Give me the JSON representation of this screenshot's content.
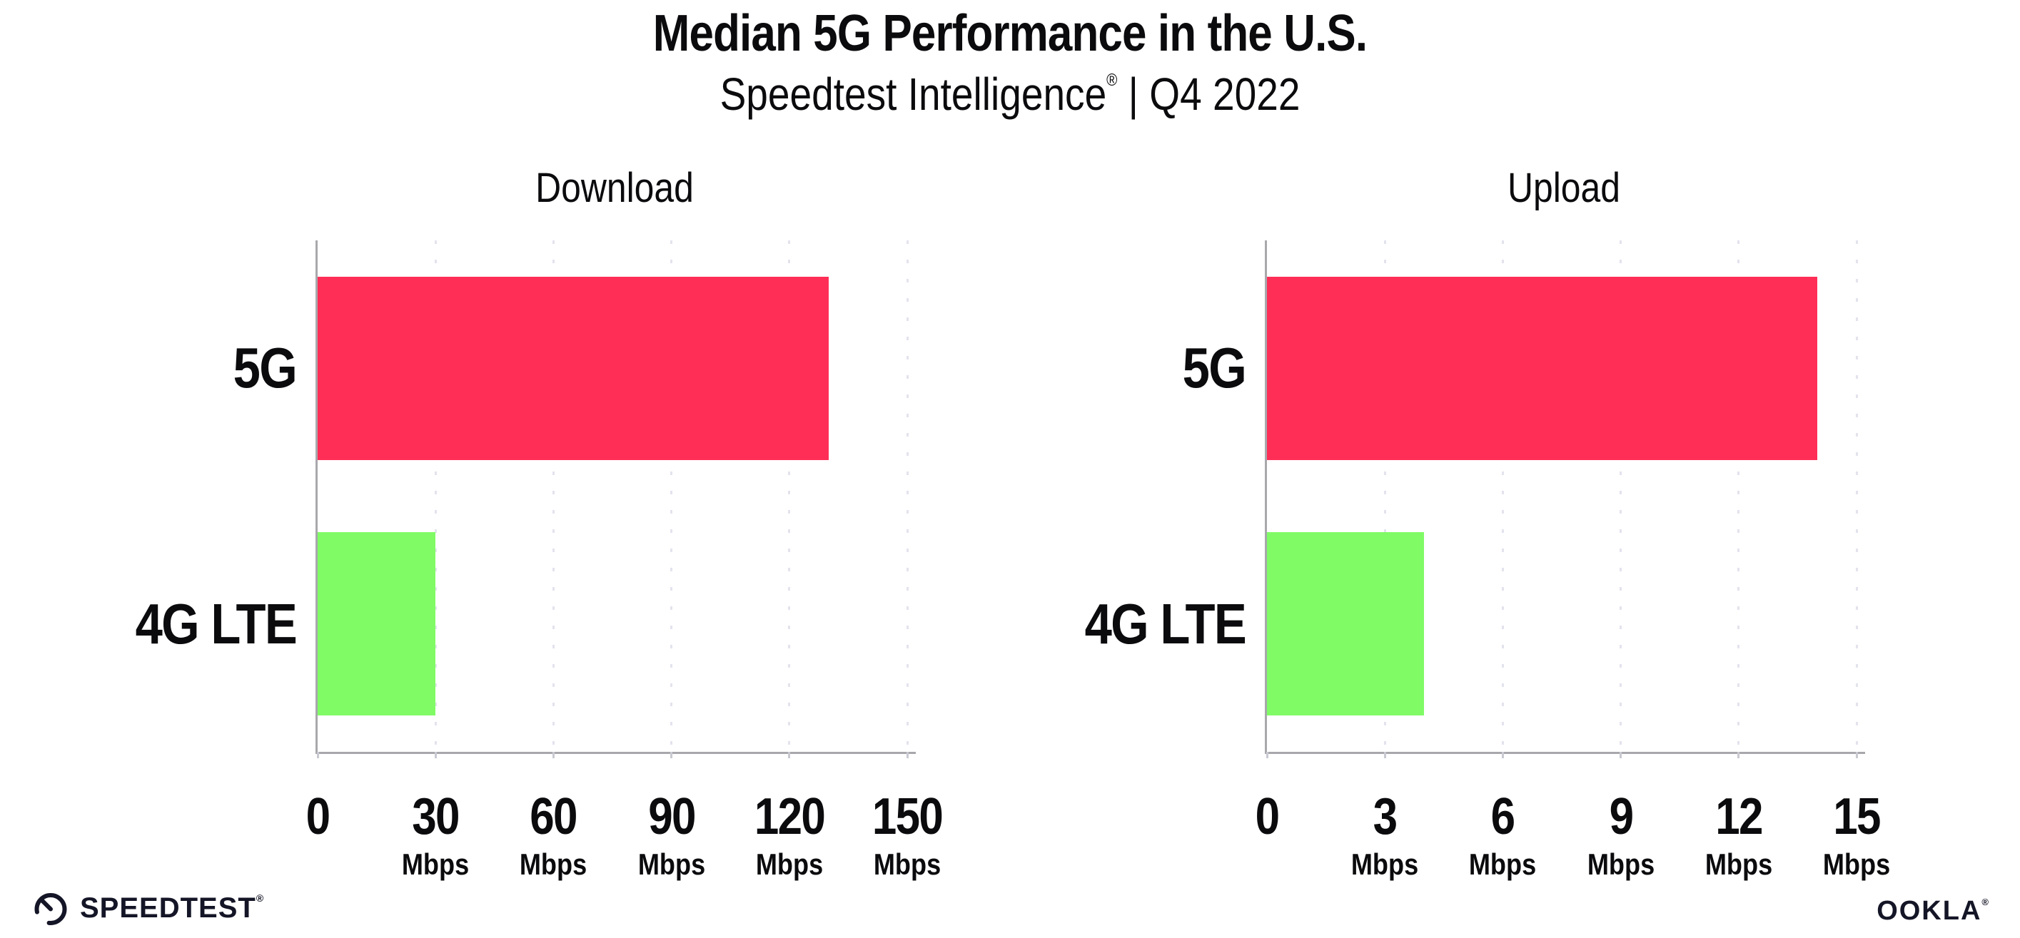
{
  "header": {
    "title": "Median 5G Performance in the U.S.",
    "subtitle_brand": "Speedtest Intelligence",
    "subtitle_registered": "®",
    "subtitle_period": " | Q4 2022"
  },
  "colors": {
    "bar_5g_pink": "#FF2E57",
    "bar_4g_green": "#80FB66",
    "axis_gray": "#A8A8AC",
    "grid_dot_gray": "#E3E3EE",
    "text_black": "#0B0B0E"
  },
  "chart_data": [
    {
      "type": "bar",
      "orientation": "horizontal",
      "title": "Download",
      "categories": [
        "5G",
        "4G LTE"
      ],
      "values": [
        130,
        30
      ],
      "unit": "Mbps",
      "xlim": [
        0,
        150
      ],
      "xticks": [
        0,
        30,
        60,
        90,
        120,
        150
      ],
      "xtick_unit_label": "Mbps",
      "bar_colors": [
        "#FF2E57",
        "#80FB66"
      ],
      "grid": "vertical-dotted",
      "legend": "none"
    },
    {
      "type": "bar",
      "orientation": "horizontal",
      "title": "Upload",
      "categories": [
        "5G",
        "4G LTE"
      ],
      "values": [
        14,
        4
      ],
      "unit": "Mbps",
      "xlim": [
        0,
        15
      ],
      "xticks": [
        0,
        3,
        6,
        9,
        12,
        15
      ],
      "xtick_unit_label": "Mbps",
      "bar_colors": [
        "#FF2E57",
        "#80FB66"
      ],
      "grid": "vertical-dotted",
      "legend": "none"
    }
  ],
  "footer": {
    "speedtest_label": "SPEEDTEST",
    "speedtest_registered": "®",
    "gauge_icon": "speedtest-gauge-icon",
    "ookla_label": "OOKLA",
    "ookla_registered": "®"
  }
}
